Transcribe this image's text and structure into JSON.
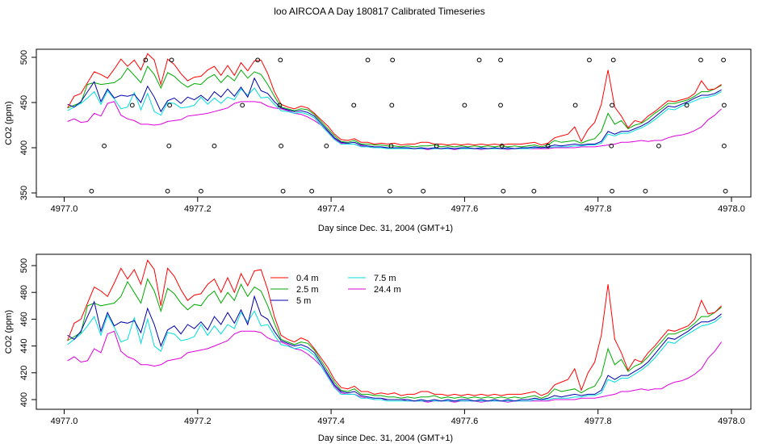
{
  "title": "loo AIRCOA A  Day 180817  Calibrated Timeseries",
  "chart_data": [
    {
      "type": "scatter",
      "xlabel": "Day since Dec. 31, 2004 (GMT+1)",
      "ylabel": "CO2 (ppm)",
      "xlim": [
        4977.0,
        4978.0
      ],
      "ylim": [
        350,
        500
      ],
      "x_ticks": [
        "4977.0",
        "4977.2",
        "4977.4",
        "4977.6",
        "4977.8",
        "4978.0"
      ],
      "y_ticks": [
        "350",
        "400",
        "450",
        "500"
      ],
      "x_tick_values": [
        4977.0,
        4977.2,
        4977.4,
        4977.6,
        4977.8,
        4978.0
      ],
      "y_tick_values": [
        350,
        400,
        450,
        500
      ],
      "markers": [
        {
          "x": 4977.041,
          "y": 352
        },
        {
          "x": 4977.06,
          "y": 402
        },
        {
          "x": 4977.102,
          "y": 447
        },
        {
          "x": 4977.122,
          "y": 497
        },
        {
          "x": 4977.155,
          "y": 352
        },
        {
          "x": 4977.157,
          "y": 402
        },
        {
          "x": 4977.158,
          "y": 447
        },
        {
          "x": 4977.161,
          "y": 497
        },
        {
          "x": 4977.205,
          "y": 352
        },
        {
          "x": 4977.225,
          "y": 402
        },
        {
          "x": 4977.267,
          "y": 447
        },
        {
          "x": 4977.29,
          "y": 497
        },
        {
          "x": 4977.323,
          "y": 447
        },
        {
          "x": 4977.324,
          "y": 497
        },
        {
          "x": 4977.325,
          "y": 402
        },
        {
          "x": 4977.328,
          "y": 352
        },
        {
          "x": 4977.371,
          "y": 352
        },
        {
          "x": 4977.393,
          "y": 402
        },
        {
          "x": 4977.434,
          "y": 447
        },
        {
          "x": 4977.455,
          "y": 497
        },
        {
          "x": 4977.488,
          "y": 352
        },
        {
          "x": 4977.491,
          "y": 447
        },
        {
          "x": 4977.49,
          "y": 402
        },
        {
          "x": 4977.492,
          "y": 497
        },
        {
          "x": 4977.538,
          "y": 352
        },
        {
          "x": 4977.558,
          "y": 402
        },
        {
          "x": 4977.6,
          "y": 447
        },
        {
          "x": 4977.622,
          "y": 497
        },
        {
          "x": 4977.654,
          "y": 497
        },
        {
          "x": 4977.654,
          "y": 447
        },
        {
          "x": 4977.656,
          "y": 402
        },
        {
          "x": 4977.658,
          "y": 352
        },
        {
          "x": 4977.704,
          "y": 352
        },
        {
          "x": 4977.725,
          "y": 402
        },
        {
          "x": 4977.766,
          "y": 447
        },
        {
          "x": 4977.787,
          "y": 497
        },
        {
          "x": 4977.82,
          "y": 402
        },
        {
          "x": 4977.821,
          "y": 352
        },
        {
          "x": 4977.821,
          "y": 447
        },
        {
          "x": 4977.823,
          "y": 497
        },
        {
          "x": 4977.871,
          "y": 352
        },
        {
          "x": 4977.891,
          "y": 402
        },
        {
          "x": 4977.933,
          "y": 447
        },
        {
          "x": 4977.954,
          "y": 497
        },
        {
          "x": 4977.988,
          "y": 497
        },
        {
          "x": 4977.989,
          "y": 447
        },
        {
          "x": 4977.989,
          "y": 402
        },
        {
          "x": 4977.991,
          "y": 352
        }
      ],
      "x": [
        4977.005,
        4977.015,
        4977.025,
        4977.035,
        4977.045,
        4977.055,
        4977.065,
        4977.075,
        4977.085,
        4977.095,
        4977.105,
        4977.115,
        4977.125,
        4977.135,
        4977.145,
        4977.155,
        4977.165,
        4977.175,
        4977.185,
        4977.195,
        4977.205,
        4977.215,
        4977.225,
        4977.235,
        4977.245,
        4977.255,
        4977.265,
        4977.275,
        4977.285,
        4977.295,
        4977.305,
        4977.315,
        4977.325,
        4977.335,
        4977.345,
        4977.355,
        4977.365,
        4977.375,
        4977.385,
        4977.395,
        4977.405,
        4977.415,
        4977.425,
        4977.435,
        4977.445,
        4977.455,
        4977.465,
        4977.475,
        4977.485,
        4977.495,
        4977.505,
        4977.515,
        4977.525,
        4977.535,
        4977.545,
        4977.555,
        4977.565,
        4977.575,
        4977.585,
        4977.595,
        4977.605,
        4977.615,
        4977.625,
        4977.635,
        4977.645,
        4977.655,
        4977.665,
        4977.675,
        4977.685,
        4977.695,
        4977.705,
        4977.715,
        4977.725,
        4977.735,
        4977.745,
        4977.755,
        4977.765,
        4977.775,
        4977.785,
        4977.795,
        4977.805,
        4977.815,
        4977.825,
        4977.835,
        4977.845,
        4977.855,
        4977.865,
        4977.875,
        4977.885,
        4977.895,
        4977.905,
        4977.915,
        4977.925,
        4977.935,
        4977.945,
        4977.955,
        4977.965,
        4977.975,
        4977.985
      ],
      "series": [
        {
          "name": "0.4 m",
          "color": "#ff0000",
          "values": [
            444,
            457,
            460,
            472,
            484,
            481,
            477,
            487,
            498,
            490,
            497,
            486,
            504,
            497,
            470,
            498,
            492,
            482,
            474,
            478,
            479,
            486,
            490,
            480,
            491,
            480,
            494,
            485,
            496,
            497,
            482,
            462,
            448,
            445,
            443,
            446,
            444,
            438,
            431,
            424,
            415,
            409,
            408,
            410,
            406,
            406,
            404,
            405,
            404,
            405,
            403,
            404,
            404,
            406,
            406,
            404,
            404,
            403,
            404,
            403,
            404,
            403,
            404,
            403,
            404,
            403,
            404,
            404,
            404,
            405,
            406,
            403,
            405,
            411,
            413,
            415,
            423,
            407,
            420,
            428,
            448,
            486,
            445,
            435,
            422,
            430,
            428,
            435,
            440,
            446,
            452,
            451,
            453,
            455,
            460,
            474,
            464,
            465,
            470
          ]
        },
        {
          "name": "2.5 m",
          "color": "#00aa00",
          "values": [
            444,
            447,
            450,
            470,
            472,
            470,
            471,
            472,
            477,
            488,
            480,
            472,
            490,
            481,
            466,
            483,
            479,
            472,
            467,
            471,
            470,
            477,
            481,
            472,
            480,
            474,
            486,
            477,
            484,
            481,
            470,
            457,
            445,
            443,
            441,
            443,
            442,
            437,
            429,
            421,
            413,
            407,
            406,
            408,
            404,
            404,
            403,
            403,
            402,
            402,
            401,
            402,
            401,
            402,
            402,
            403,
            401,
            402,
            401,
            402,
            401,
            402,
            401,
            402,
            401,
            402,
            401,
            402,
            401,
            402,
            403,
            401,
            403,
            408,
            406,
            407,
            408,
            405,
            408,
            410,
            418,
            438,
            426,
            430,
            421,
            425,
            427,
            432,
            438,
            443,
            449,
            449,
            451,
            453,
            457,
            462,
            462,
            465,
            469
          ]
        },
        {
          "name": "5 m",
          "color": "#0000aa",
          "values": [
            448,
            445,
            451,
            462,
            473,
            451,
            465,
            455,
            458,
            457,
            459,
            450,
            468,
            456,
            440,
            452,
            455,
            449,
            456,
            453,
            458,
            452,
            462,
            456,
            465,
            457,
            467,
            456,
            477,
            463,
            460,
            451,
            444,
            442,
            440,
            441,
            439,
            435,
            427,
            419,
            411,
            406,
            405,
            406,
            403,
            402,
            401,
            401,
            400,
            400,
            400,
            400,
            399,
            400,
            399,
            400,
            399,
            400,
            399,
            400,
            400,
            399,
            400,
            399,
            400,
            399,
            400,
            399,
            400,
            400,
            401,
            400,
            401,
            403,
            402,
            403,
            404,
            403,
            404,
            404,
            407,
            418,
            415,
            418,
            418,
            421,
            424,
            428,
            434,
            440,
            446,
            445,
            448,
            451,
            455,
            458,
            458,
            460,
            464
          ]
        },
        {
          "name": "7.5 m",
          "color": "#00dddd",
          "values": [
            441,
            445,
            449,
            455,
            462,
            448,
            463,
            454,
            443,
            445,
            461,
            442,
            460,
            440,
            436,
            450,
            449,
            444,
            445,
            447,
            456,
            448,
            455,
            449,
            456,
            453,
            465,
            458,
            466,
            455,
            456,
            448,
            441,
            440,
            438,
            439,
            437,
            433,
            425,
            417,
            409,
            404,
            404,
            404,
            401,
            401,
            400,
            400,
            399,
            399,
            399,
            399,
            399,
            399,
            399,
            399,
            399,
            399,
            399,
            399,
            399,
            399,
            399,
            399,
            399,
            399,
            399,
            399,
            399,
            399,
            400,
            400,
            400,
            401,
            401,
            401,
            402,
            402,
            403,
            403,
            405,
            415,
            413,
            416,
            416,
            419,
            422,
            426,
            431,
            437,
            443,
            442,
            446,
            449,
            452,
            455,
            456,
            458,
            462
          ]
        },
        {
          "name": "24.4 m",
          "color": "#dd00dd",
          "values": [
            429,
            432,
            428,
            429,
            438,
            435,
            449,
            451,
            436,
            432,
            430,
            426,
            426,
            425,
            426,
            429,
            430,
            431,
            435,
            436,
            437,
            438,
            440,
            442,
            444,
            449,
            451,
            451,
            451,
            450,
            446,
            444,
            443,
            441,
            438,
            437,
            434,
            430,
            425,
            418,
            410,
            405,
            404,
            404,
            402,
            401,
            400,
            400,
            400,
            400,
            400,
            399,
            399,
            399,
            398,
            399,
            399,
            399,
            398,
            399,
            399,
            399,
            398,
            399,
            399,
            399,
            398,
            399,
            399,
            399,
            399,
            399,
            399,
            400,
            400,
            400,
            400,
            401,
            401,
            401,
            402,
            403,
            404,
            406,
            406,
            407,
            408,
            407,
            408,
            408,
            411,
            413,
            414,
            416,
            419,
            423,
            431,
            436,
            443
          ]
        }
      ]
    },
    {
      "type": "line",
      "xlabel": "Day since Dec. 31, 2004 (GMT+1)",
      "ylabel": "CO2 (ppm)",
      "xlim": [
        4977.0,
        4978.0
      ],
      "ylim": [
        400,
        500
      ],
      "x_ticks": [
        "4977.0",
        "4977.2",
        "4977.4",
        "4977.6",
        "4977.8",
        "4978.0"
      ],
      "y_ticks": [
        "400",
        "420",
        "440",
        "460",
        "480",
        "500"
      ],
      "x_tick_values": [
        4977.0,
        4977.2,
        4977.4,
        4977.6,
        4977.8,
        4978.0
      ],
      "y_tick_values": [
        400,
        420,
        440,
        460,
        480,
        500
      ],
      "legend": {
        "placement": "top-left",
        "entries": [
          {
            "name": "0.4 m",
            "color": "#ff0000"
          },
          {
            "name": "2.5 m",
            "color": "#00aa00"
          },
          {
            "name": "5 m",
            "color": "#0000aa"
          },
          {
            "name": "7.5 m",
            "color": "#00dddd"
          },
          {
            "name": "24.4 m",
            "color": "#dd00dd"
          }
        ]
      },
      "series_ref": "same as panel 1 series"
    }
  ]
}
